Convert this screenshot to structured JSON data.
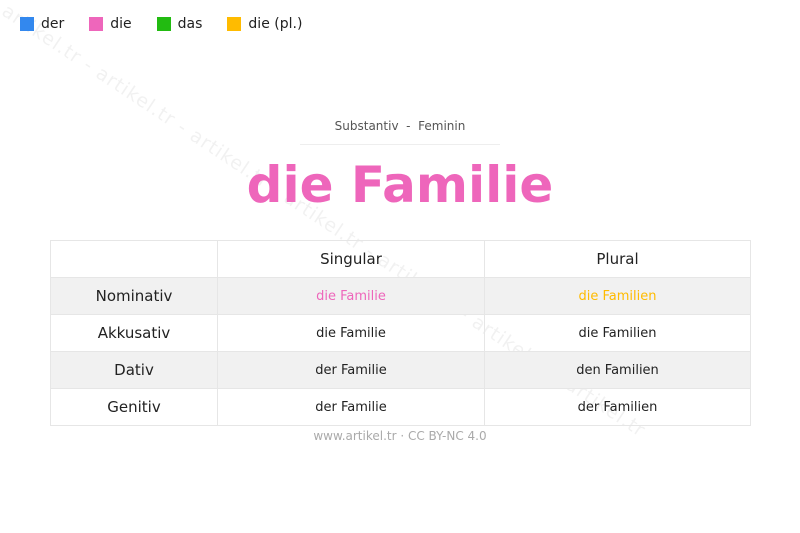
{
  "legend": [
    {
      "label": "der",
      "color": "#3388ee"
    },
    {
      "label": "die",
      "color": "#ee66bb"
    },
    {
      "label": "das",
      "color": "#22bb11"
    },
    {
      "label": "die (pl.)",
      "color": "#ffbb00"
    }
  ],
  "watermark": "artikel.tr - artikel.tr - artikel.tr - artikel.tr - artikel.tr - artikel.tr - artikel.tr",
  "subtitle": "Substantiv  -  Feminin",
  "title": "die Familie",
  "title_color": "#ee66bb",
  "table": {
    "headers": [
      "",
      "Singular",
      "Plural"
    ],
    "rows": [
      {
        "case": "Nominativ",
        "singular": "die Familie",
        "plural": "die Familien",
        "singular_color": "#ee66bb",
        "plural_color": "#ffbb00"
      },
      {
        "case": "Akkusativ",
        "singular": "die Familie",
        "plural": "die Familien"
      },
      {
        "case": "Dativ",
        "singular": "der Familie",
        "plural": "den Familien"
      },
      {
        "case": "Genitiv",
        "singular": "der Familie",
        "plural": "der Familien"
      }
    ]
  },
  "footer": "www.artikel.tr · CC BY-NC 4.0"
}
